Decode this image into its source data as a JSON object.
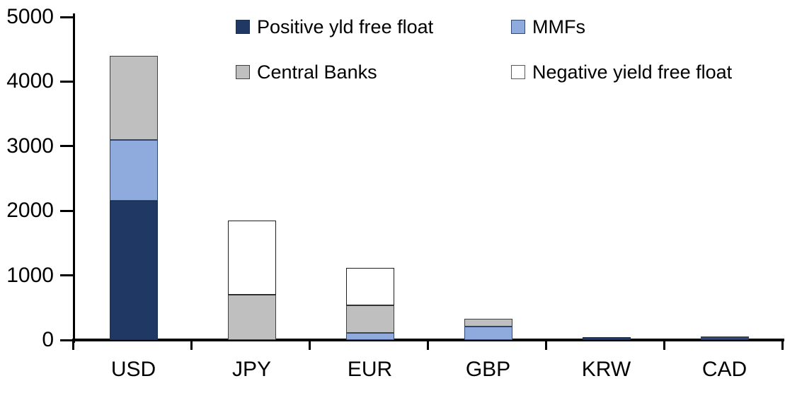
{
  "chart_data": {
    "type": "bar",
    "stacked": true,
    "title": "",
    "xlabel": "",
    "ylabel": "",
    "ylim": [
      0,
      5000
    ],
    "yticks": [
      0,
      1000,
      2000,
      3000,
      4000,
      5000
    ],
    "grid": false,
    "legend_position": "top",
    "categories": [
      "USD",
      "JPY",
      "EUR",
      "GBP",
      "KRW",
      "CAD"
    ],
    "series": [
      {
        "name": "Positive yld free float",
        "color": "#1f3864",
        "border_color": "#1a2f52",
        "values": [
          2150,
          0,
          0,
          0,
          45,
          20
        ]
      },
      {
        "name": "MMFs",
        "color": "#8faadc",
        "border_color": "#2f4a76",
        "values": [
          950,
          0,
          110,
          210,
          0,
          10
        ]
      },
      {
        "name": "Central Banks",
        "color": "#bfbfbf",
        "border_color": "#3f3f3f",
        "values": [
          1300,
          700,
          430,
          120,
          0,
          25
        ]
      },
      {
        "name": "Negative yield free float",
        "color": "#ffffff",
        "border_color": "#1f1f1f",
        "values": [
          0,
          1150,
          580,
          0,
          0,
          0
        ]
      }
    ],
    "totals": [
      4400,
      1850,
      1120,
      330,
      45,
      55
    ]
  },
  "colors": {
    "axis": "#000000",
    "background": "#ffffff",
    "text": "#000000"
  }
}
